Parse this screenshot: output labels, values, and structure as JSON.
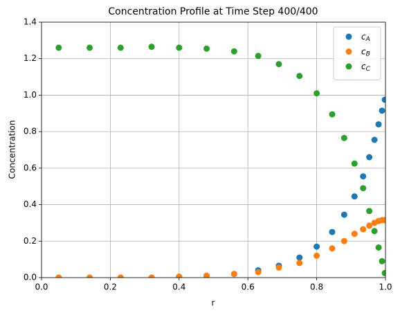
{
  "chart_data": {
    "type": "scatter",
    "title": "Concentration Profile at Time Step 400/400",
    "x_label": "r",
    "y_label": "Concentration",
    "x": [
      0.05,
      0.14,
      0.23,
      0.32,
      0.4,
      0.48,
      0.56,
      0.63,
      0.69,
      0.75,
      0.8,
      0.845,
      0.88,
      0.91,
      0.935,
      0.953,
      0.968,
      0.98,
      0.99,
      0.998
    ],
    "series": [
      {
        "name": "c_A",
        "color": "#1f77b4",
        "values": [
          0,
          0,
          0,
          0,
          0.005,
          0.01,
          0.02,
          0.04,
          0.065,
          0.11,
          0.17,
          0.25,
          0.345,
          0.445,
          0.555,
          0.66,
          0.755,
          0.84,
          0.915,
          0.975
        ]
      },
      {
        "name": "c_B",
        "color": "#ff7f0e",
        "values": [
          0,
          0,
          0,
          0,
          0.005,
          0.01,
          0.02,
          0.03,
          0.055,
          0.08,
          0.12,
          0.16,
          0.2,
          0.24,
          0.265,
          0.285,
          0.3,
          0.31,
          0.315,
          0.315
        ]
      },
      {
        "name": "c_C",
        "color": "#2ca02c",
        "values": [
          1.26,
          1.26,
          1.26,
          1.265,
          1.26,
          1.255,
          1.24,
          1.215,
          1.17,
          1.105,
          1.01,
          0.895,
          0.765,
          0.625,
          0.49,
          0.365,
          0.255,
          0.165,
          0.09,
          0.025
        ]
      }
    ],
    "xlim": [
      0,
      1
    ],
    "ylim": [
      0,
      1.4
    ],
    "xticks": [
      {
        "value": 0,
        "label": "0.0"
      },
      0.2,
      0.4,
      0.6,
      0.8,
      {
        "value": 1,
        "label": "1.0"
      }
    ],
    "yticks": [
      {
        "value": 0,
        "label": "0.0"
      },
      0.2,
      0.4,
      0.6,
      0.8,
      {
        "value": 1,
        "label": "1.0"
      },
      1.2,
      1.4
    ],
    "grid": true,
    "legend": "upper right"
  }
}
